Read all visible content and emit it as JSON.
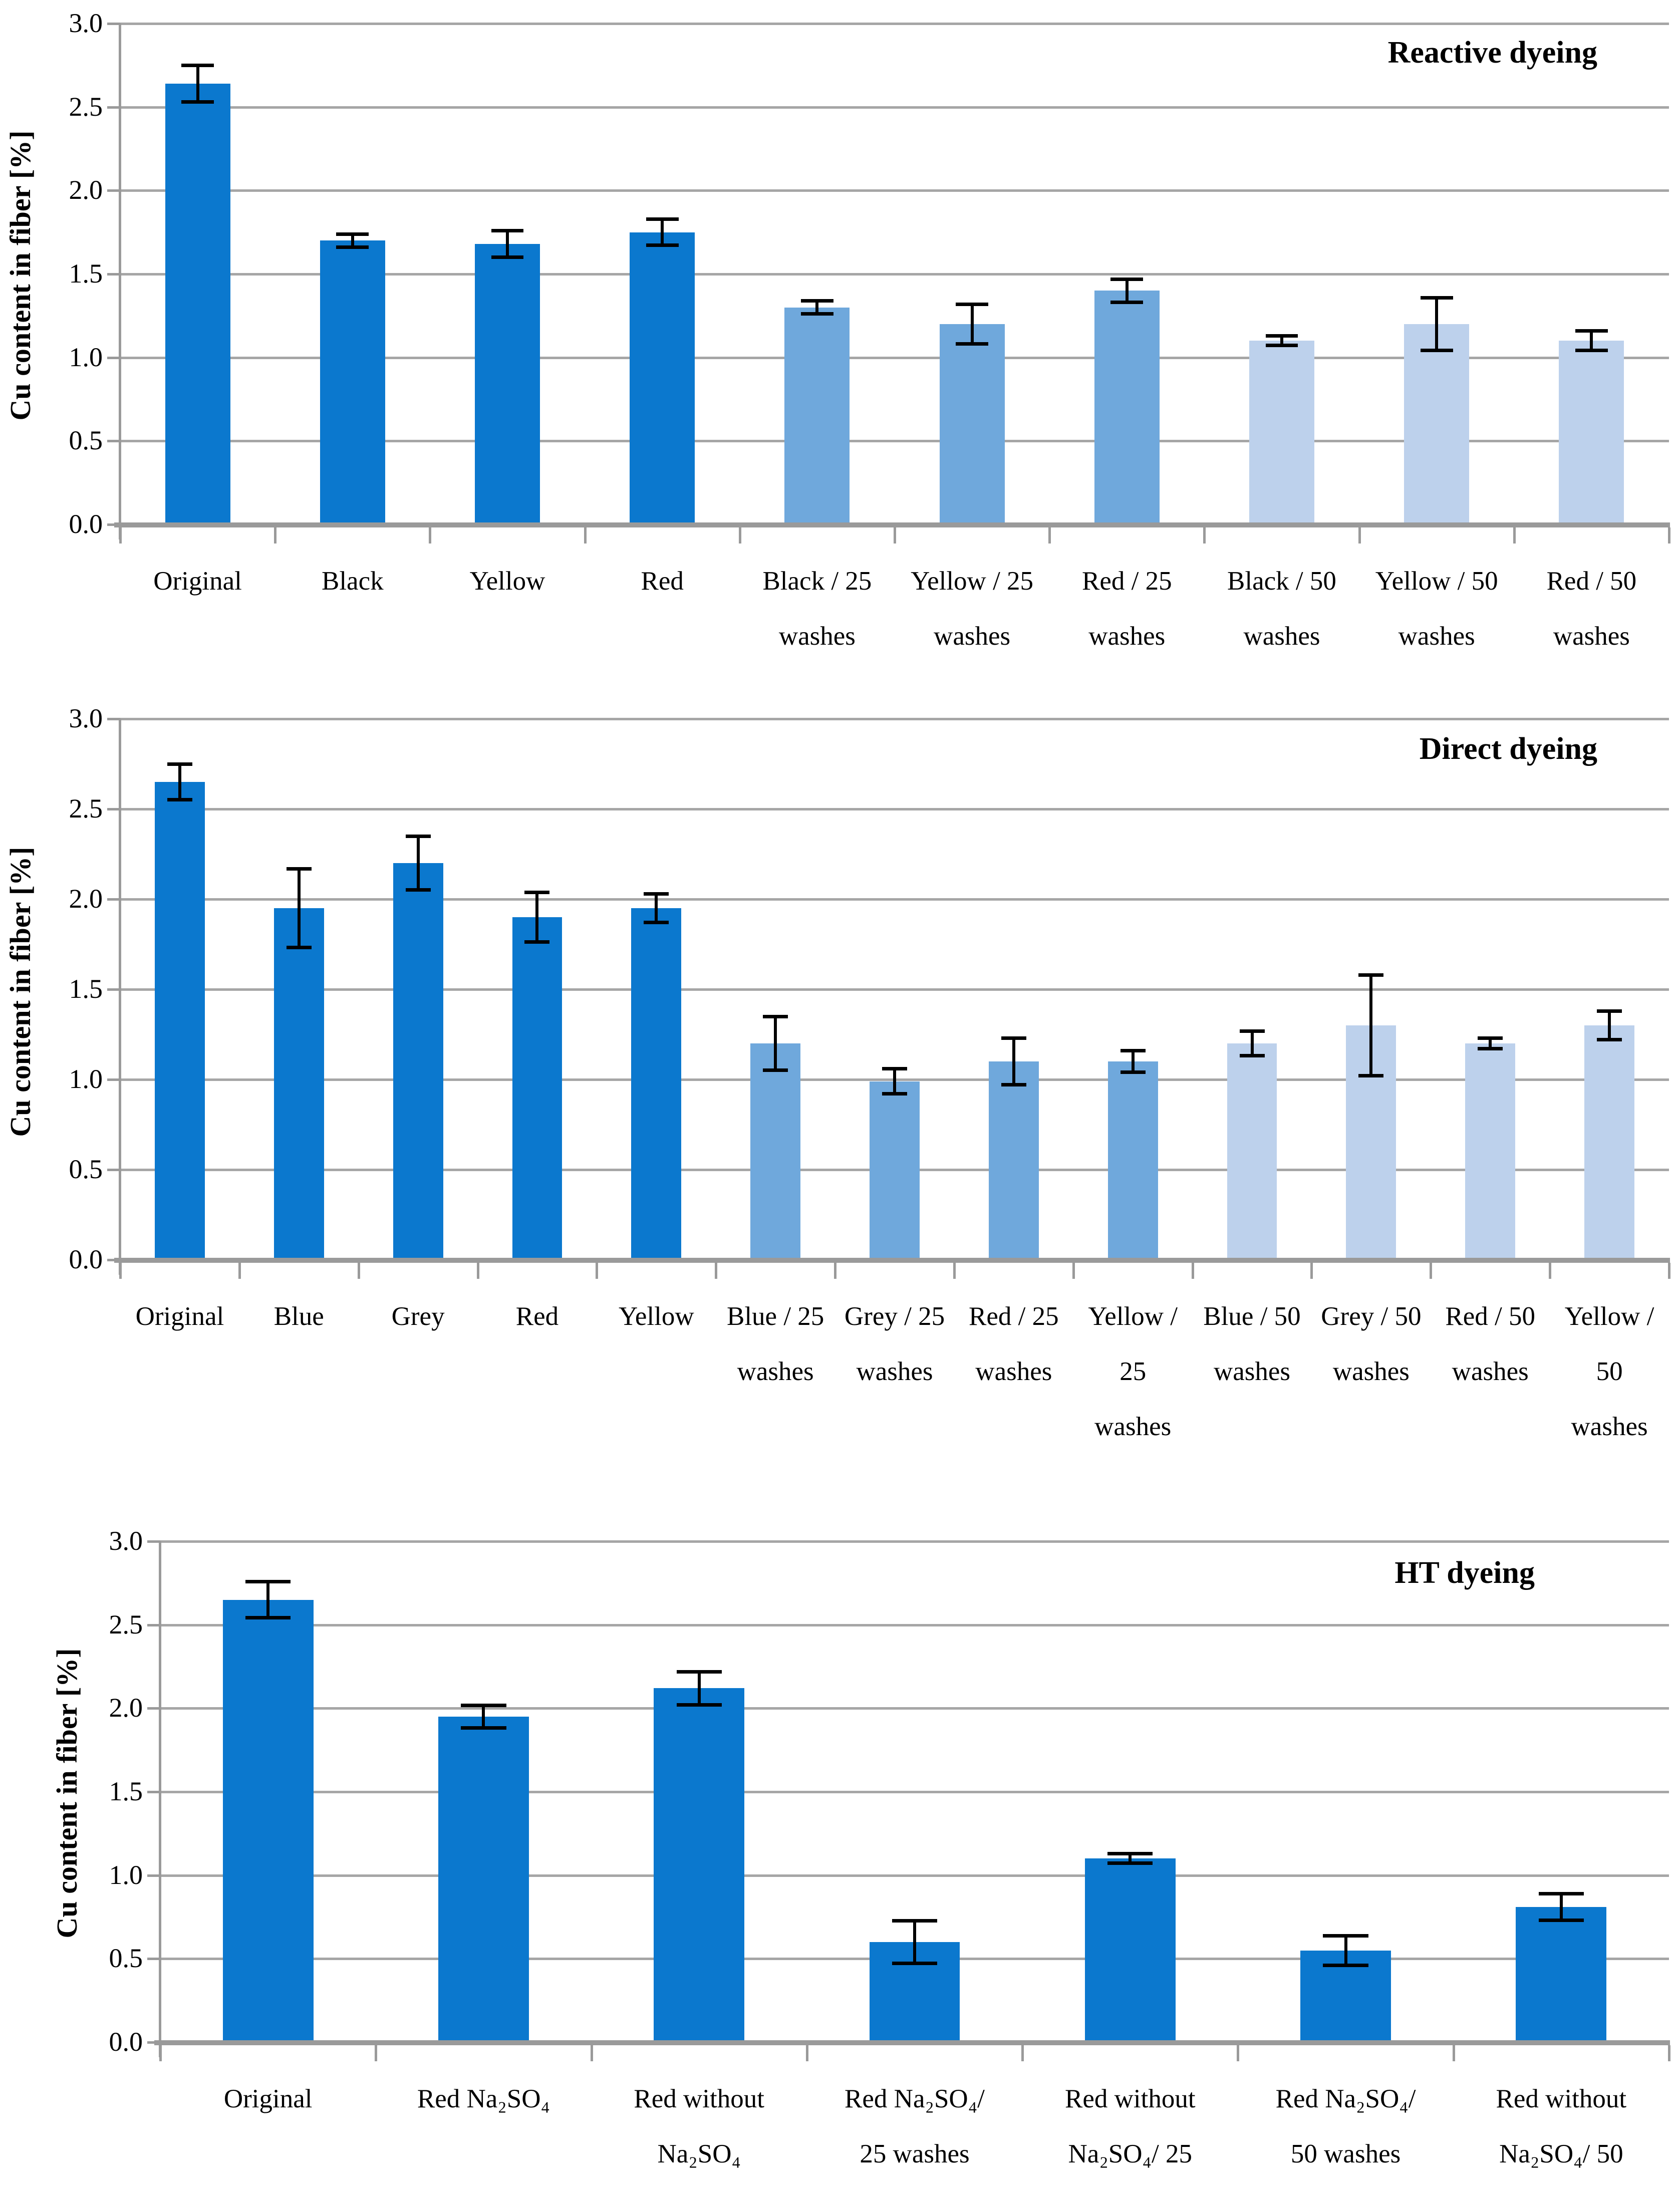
{
  "figure": {
    "background": "#ffffff"
  },
  "colors": {
    "bar_dark": "#0b78ce",
    "bar_medium": "#6fa8dc",
    "bar_light": "#bdd1ec",
    "gridline": "#a6a6a6",
    "axis": "#9a9a9a",
    "error": "#000000",
    "text": "#000000"
  },
  "chart_data": [
    {
      "type": "bar",
      "title": "Reactive dyeing",
      "ylabel": "Cu content in fiber [%]",
      "xlabel": "",
      "ylim": [
        0.0,
        3.0
      ],
      "yticks": [
        "3.0",
        "2.5",
        "2.0",
        "1.5",
        "1.0",
        "0.5",
        "0.0"
      ],
      "grid": true,
      "legend_position": "none",
      "categories": [
        "Original",
        "Black",
        "Yellow",
        "Red",
        "Black / 25 washes",
        "Yellow / 25 washes",
        "Red / 25 washes",
        "Black / 50 washes",
        "Yellow / 50 washes",
        "Red / 50 washes"
      ],
      "category_label_lines": [
        [
          "Original"
        ],
        [
          "Black"
        ],
        [
          "Yellow"
        ],
        [
          "Red"
        ],
        [
          "Black / 25",
          "washes"
        ],
        [
          "Yellow / 25",
          "washes"
        ],
        [
          "Red / 25",
          "washes"
        ],
        [
          "Black / 50",
          "washes"
        ],
        [
          "Yellow / 50",
          "washes"
        ],
        [
          "Red / 50",
          "washes"
        ]
      ],
      "values": [
        2.64,
        1.7,
        1.68,
        1.75,
        1.3,
        1.2,
        1.4,
        1.1,
        1.2,
        1.1
      ],
      "errors": [
        0.11,
        0.04,
        0.08,
        0.08,
        0.04,
        0.12,
        0.07,
        0.03,
        0.16,
        0.06
      ],
      "bar_color_groups": [
        "dark",
        "dark",
        "dark",
        "dark",
        "medium",
        "medium",
        "medium",
        "light",
        "light",
        "light"
      ]
    },
    {
      "type": "bar",
      "title": "Direct dyeing",
      "ylabel": "Cu content in fiber [%]",
      "xlabel": "",
      "ylim": [
        0.0,
        3.0
      ],
      "yticks": [
        "3.0",
        "2.5",
        "2.0",
        "1.5",
        "1.0",
        "0.5",
        "0.0"
      ],
      "grid": true,
      "legend_position": "none",
      "categories": [
        "Original",
        "Blue",
        "Grey",
        "Red",
        "Yellow",
        "Blue / 25 washes",
        "Grey / 25 washes",
        "Red / 25 washes",
        "Yellow / 25 washes",
        "Blue / 50 washes",
        "Grey / 50 washes",
        "Red / 50 washes",
        "Yellow / 50 washes"
      ],
      "category_label_lines": [
        [
          "Original"
        ],
        [
          "Blue"
        ],
        [
          "Grey"
        ],
        [
          "Red"
        ],
        [
          "Yellow"
        ],
        [
          "Blue / 25",
          "washes"
        ],
        [
          "Grey / 25",
          "washes"
        ],
        [
          "Red / 25",
          "washes"
        ],
        [
          "Yellow /",
          "25",
          "washes"
        ],
        [
          "Blue / 50",
          "washes"
        ],
        [
          "Grey / 50",
          "washes"
        ],
        [
          "Red  / 50",
          "washes"
        ],
        [
          "Yellow /",
          "50",
          "washes"
        ]
      ],
      "values": [
        2.65,
        1.95,
        2.2,
        1.9,
        1.95,
        1.2,
        0.99,
        1.1,
        1.1,
        1.2,
        1.3,
        1.2,
        1.3
      ],
      "errors": [
        0.1,
        0.22,
        0.15,
        0.14,
        0.08,
        0.15,
        0.07,
        0.13,
        0.06,
        0.07,
        0.28,
        0.03,
        0.08
      ],
      "bar_color_groups": [
        "dark",
        "dark",
        "dark",
        "dark",
        "dark",
        "medium",
        "medium",
        "medium",
        "medium",
        "light",
        "light",
        "light",
        "light"
      ]
    },
    {
      "type": "bar",
      "title": "HT dyeing",
      "ylabel": "Cu content in fiber [%]",
      "xlabel": "",
      "ylim": [
        0.0,
        3.0
      ],
      "yticks": [
        "3.0",
        "2.5",
        "2.0",
        "1.5",
        "1.0",
        "0.5",
        "0.0"
      ],
      "grid": true,
      "legend_position": "none",
      "categories": [
        "Original",
        "Red Na₂SO₄",
        "Red without Na₂SO₄",
        "Red Na₂SO₄/ 25 washes",
        "Red without Na₂SO₄/ 25 washes",
        "Red Na₂SO₄/ 50 washes",
        "Red without Na₂SO₄/ 50 washes"
      ],
      "category_label_lines": [
        [
          "Original"
        ],
        [
          "Red Na₂SO₄"
        ],
        [
          "Red without",
          "Na₂SO₄"
        ],
        [
          "Red Na₂SO₄/",
          "25 washes"
        ],
        [
          "Red without",
          "Na₂SO₄/ 25",
          "washes"
        ],
        [
          "Red Na₂SO₄/",
          "50 washes"
        ],
        [
          "Red without",
          "Na₂SO₄/ 50",
          "washes"
        ]
      ],
      "values": [
        2.65,
        1.95,
        2.12,
        0.6,
        1.1,
        0.55,
        0.81
      ],
      "errors": [
        0.11,
        0.07,
        0.1,
        0.13,
        0.03,
        0.09,
        0.08
      ],
      "bar_color_groups": [
        "dark",
        "dark",
        "dark",
        "dark",
        "dark",
        "dark",
        "dark"
      ]
    }
  ]
}
